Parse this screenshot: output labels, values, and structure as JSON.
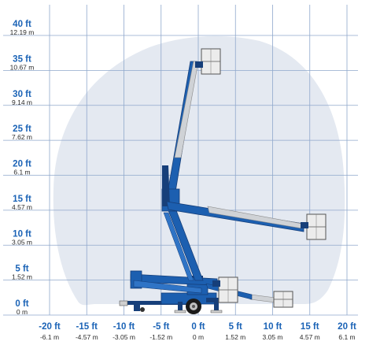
{
  "chart_data": {
    "type": "diagram",
    "x_ticks": [
      {
        "ft": "-20 ft",
        "m": "-6.1 m",
        "value": -20
      },
      {
        "ft": "-15 ft",
        "m": "-4.57 m",
        "value": -15
      },
      {
        "ft": "-10 ft",
        "m": "-3.05 m",
        "value": -10
      },
      {
        "ft": "-5 ft",
        "m": "-1.52 m",
        "value": -5
      },
      {
        "ft": "0 ft",
        "m": "0 m",
        "value": 0
      },
      {
        "ft": "5 ft",
        "m": "1.52 m",
        "value": 5
      },
      {
        "ft": "10 ft",
        "m": "3.05 m",
        "value": 10
      },
      {
        "ft": "15 ft",
        "m": "4.57 m",
        "value": 15
      },
      {
        "ft": "20 ft",
        "m": "6.1 m",
        "value": 20
      }
    ],
    "y_ticks": [
      {
        "ft": "40 ft",
        "m": "12.19 m",
        "value": 40
      },
      {
        "ft": "35 ft",
        "m": "10.67 m",
        "value": 35
      },
      {
        "ft": "30 ft",
        "m": "9.14 m",
        "value": 30
      },
      {
        "ft": "25 ft",
        "m": "7.62 m",
        "value": 25
      },
      {
        "ft": "20 ft",
        "m": "6.1 m",
        "value": 20
      },
      {
        "ft": "15 ft",
        "m": "4.57 m",
        "value": 15
      },
      {
        "ft": "10 ft",
        "m": "3.05 m",
        "value": 10
      },
      {
        "ft": "5 ft",
        "m": "1.52 m",
        "value": 5
      },
      {
        "ft": "0 ft",
        "m": "0 m",
        "value": 0
      }
    ],
    "xlim": [
      -20,
      20
    ],
    "ylim": [
      0,
      40
    ],
    "grid": true,
    "colors": {
      "grid": "#8fa8cc",
      "envelope": "#e4e9f1",
      "boom": "#1c5fb0",
      "boom_dark": "#163f7a",
      "label_ft": "#1b63b6",
      "label_m": "#2b2b2b",
      "platform": "#d9d9d9"
    }
  }
}
